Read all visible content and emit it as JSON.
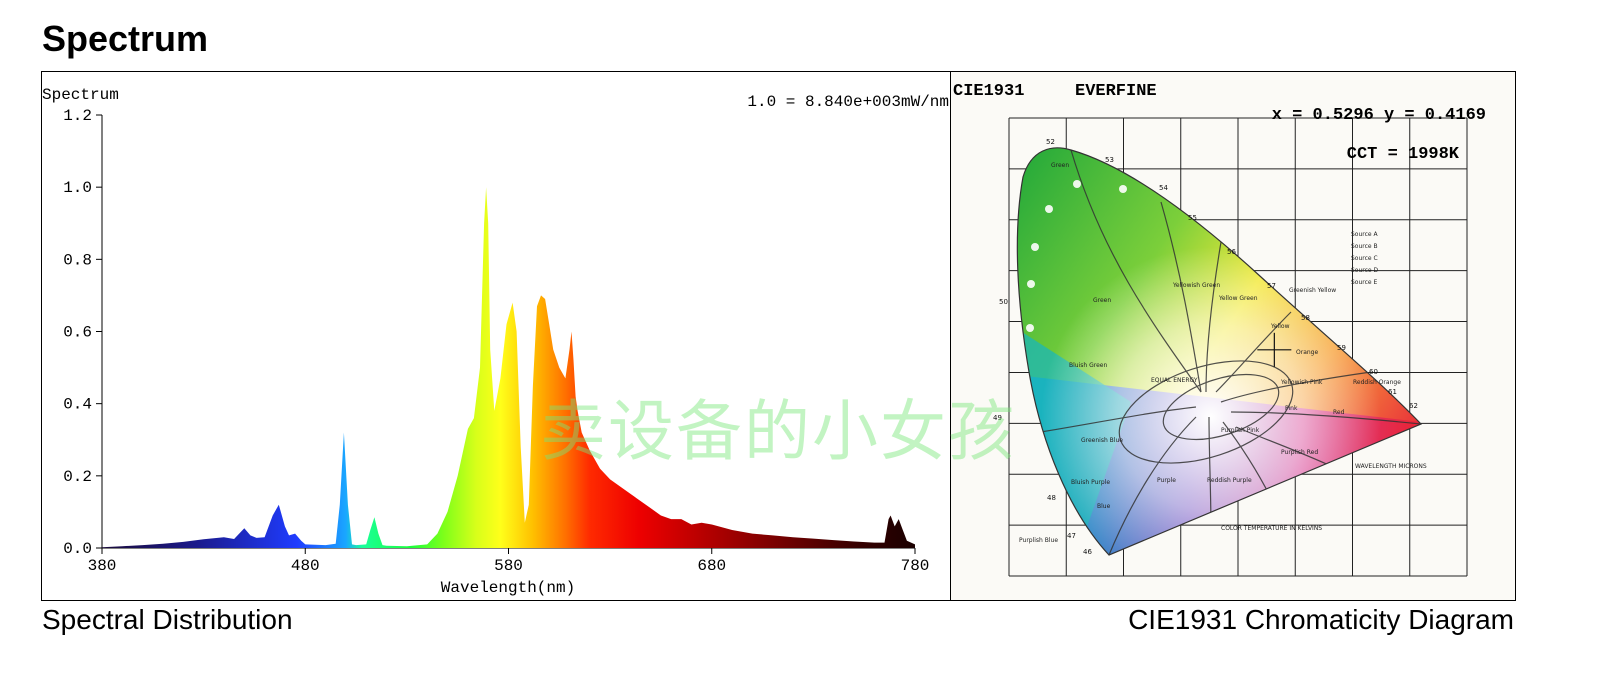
{
  "page": {
    "title": "Spectrum"
  },
  "captions": {
    "left": "Spectral Distribution",
    "right": "CIE1931 Chromaticity Diagram"
  },
  "watermark": "卖设备的小女孩",
  "chart_data": [
    {
      "type": "area",
      "title": "Spectrum",
      "annotation": "1.0 = 8.840e+003mW/nm",
      "xlabel": "Wavelength(nm)",
      "ylabel": "",
      "xlim": [
        380,
        780
      ],
      "ylim": [
        0,
        1.2
      ],
      "xticks": [
        "380",
        "480",
        "580",
        "680",
        "780"
      ],
      "yticks": [
        "0.0",
        "0.2",
        "0.4",
        "0.6",
        "0.8",
        "1.0",
        "1.2"
      ],
      "fill": "spectral-colors",
      "series": [
        {
          "x": [
            380,
            390,
            400,
            410,
            420,
            430,
            440,
            445,
            450,
            453,
            456,
            460,
            464,
            467,
            470,
            472,
            475,
            478,
            480,
            490,
            495,
            497,
            499,
            501,
            503,
            505,
            510,
            512,
            514,
            516,
            518,
            520,
            530,
            540,
            545,
            550,
            555,
            560,
            563,
            566,
            568,
            569,
            570,
            571,
            573,
            576,
            579,
            582,
            584,
            586,
            588,
            590,
            592,
            594,
            596,
            598,
            600,
            602,
            605,
            608,
            610,
            611,
            612,
            613,
            614,
            616,
            620,
            625,
            630,
            640,
            650,
            655,
            660,
            665,
            670,
            675,
            680,
            690,
            700,
            710,
            720,
            730,
            740,
            750,
            760,
            765,
            767,
            768,
            770,
            772,
            774,
            776,
            780
          ],
          "y": [
            0.002,
            0.005,
            0.008,
            0.012,
            0.017,
            0.024,
            0.03,
            0.025,
            0.055,
            0.035,
            0.028,
            0.03,
            0.09,
            0.12,
            0.06,
            0.035,
            0.04,
            0.02,
            0.01,
            0.008,
            0.012,
            0.12,
            0.32,
            0.12,
            0.01,
            0.008,
            0.01,
            0.05,
            0.085,
            0.04,
            0.008,
            0.006,
            0.005,
            0.01,
            0.04,
            0.1,
            0.2,
            0.33,
            0.36,
            0.5,
            0.9,
            1.0,
            0.9,
            0.55,
            0.38,
            0.47,
            0.62,
            0.68,
            0.6,
            0.28,
            0.07,
            0.12,
            0.45,
            0.67,
            0.7,
            0.69,
            0.62,
            0.55,
            0.5,
            0.47,
            0.55,
            0.6,
            0.52,
            0.42,
            0.38,
            0.32,
            0.27,
            0.22,
            0.19,
            0.15,
            0.11,
            0.09,
            0.08,
            0.08,
            0.065,
            0.07,
            0.065,
            0.05,
            0.04,
            0.035,
            0.03,
            0.026,
            0.022,
            0.018,
            0.015,
            0.015,
            0.08,
            0.09,
            0.06,
            0.08,
            0.05,
            0.02,
            0.01
          ]
        }
      ]
    },
    {
      "type": "scatter",
      "title": "CIE1931",
      "brand": "EVERFINE",
      "coordinates_text": "x = 0.5296 y = 0.4169",
      "cct_text": "CCT = 1998K",
      "xlim": [
        0,
        0.8
      ],
      "ylim": [
        0,
        0.9
      ],
      "point": {
        "x": 0.5296,
        "y": 0.4169
      },
      "region_labels": [
        "Green",
        "Yellowish Green",
        "Yellow Green",
        "Greenish Yellow",
        "Yellow",
        "Orange",
        "Reddish Orange",
        "Red",
        "Pink",
        "Purplish Pink",
        "Purplish Red",
        "Reddish Purple",
        "Purple",
        "Bluish Purple",
        "Blue",
        "Greenish Blue",
        "Bluish Green",
        "Yellowish Pink",
        "Purplish Blue"
      ],
      "wavelength_labels": [
        "52",
        "53",
        "54",
        "55",
        "56",
        "57",
        "58",
        "59",
        "60",
        "61",
        "62",
        "50",
        "49",
        "48",
        "47",
        "46"
      ],
      "small_text": [
        "COLOR TEMPERATURE IN KELVINS",
        "WAVELENGTH MICRONS",
        "EQUAL ENERGY",
        "Source A",
        "Source B",
        "Source C",
        "Source D",
        "Source E"
      ]
    }
  ]
}
